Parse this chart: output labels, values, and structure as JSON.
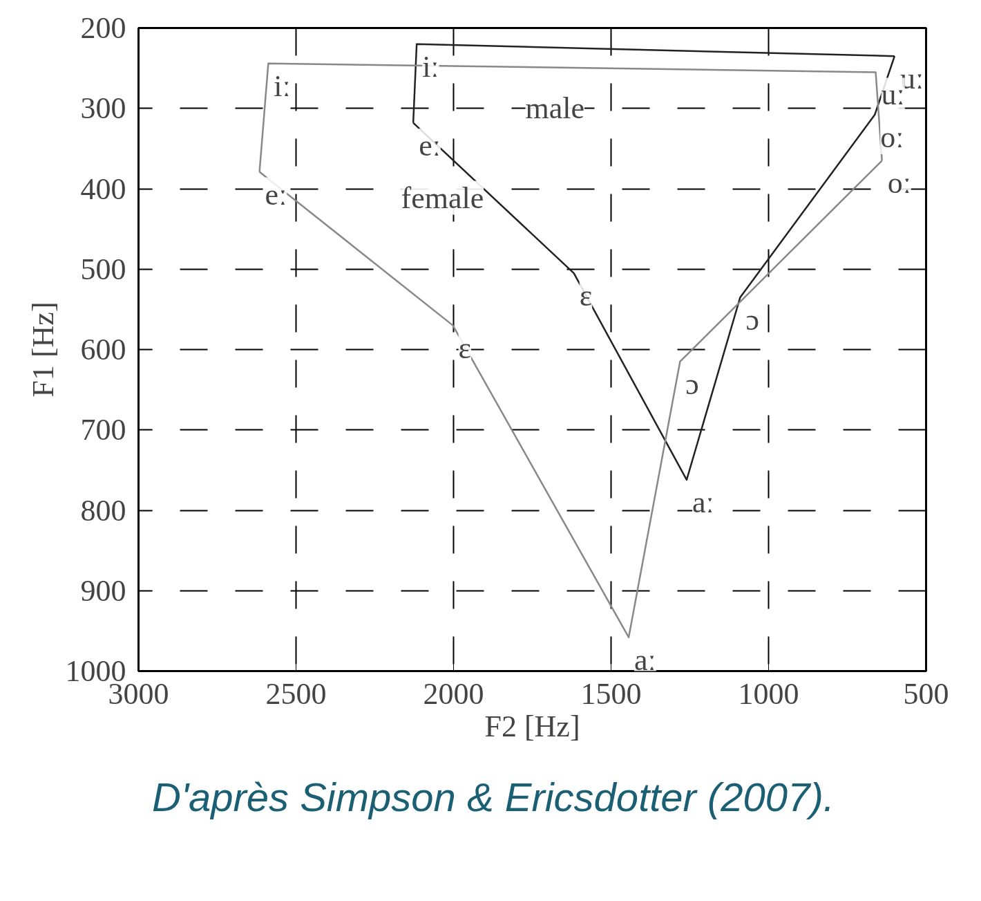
{
  "chart_data": {
    "type": "line",
    "xlabel": "F2 [Hz]",
    "ylabel": "F1 [Hz]",
    "xlim": [
      3000,
      500
    ],
    "ylim": [
      1000,
      200
    ],
    "xticks": [
      3000,
      2500,
      2000,
      1500,
      1000,
      500
    ],
    "yticks": [
      200,
      300,
      400,
      500,
      600,
      700,
      800,
      900,
      1000
    ],
    "grid": true,
    "line_style": "solid",
    "marker": "none",
    "series": [
      {
        "color": "#222222",
        "x": [
          2128,
          1618,
          1260,
          1090,
          663,
          600
        ],
        "values": [
          318,
          505,
          762,
          535,
          308,
          235
        ]
      },
      {
        "color": "#222222",
        "x": [
          2128,
          2117,
          600
        ],
        "values": [
          318,
          220,
          235
        ]
      },
      {
        "color": "#888888",
        "x": [
          2616,
          2002,
          1444,
          1281,
          640
        ],
        "values": [
          379,
          570,
          958,
          615,
          365
        ]
      },
      {
        "color": "#888888",
        "x": [
          2616,
          2588,
          660,
          640
        ],
        "values": [
          379,
          244,
          255,
          365
        ]
      }
    ],
    "annotations": [
      "male",
      "female",
      {
        "text": "iː",
        "x": 2117,
        "y": 220
      },
      {
        "text": "eː",
        "x": 2128,
        "y": 318
      },
      {
        "text": "ɛ",
        "x": 1618,
        "y": 505
      },
      {
        "text": "aː",
        "x": 1260,
        "y": 762
      },
      {
        "text": "ɔ",
        "x": 1090,
        "y": 535
      },
      {
        "text": "oː",
        "x": 663,
        "y": 308
      },
      {
        "text": "uː",
        "x": 600,
        "y": 235
      },
      {
        "text": "iː",
        "x": 2588,
        "y": 244
      },
      {
        "text": "eː",
        "x": 2616,
        "y": 379
      },
      {
        "text": "ɛ",
        "x": 2002,
        "y": 570
      },
      {
        "text": "aː",
        "x": 1444,
        "y": 958
      },
      {
        "text": "ɔ",
        "x": 1281,
        "y": 615
      },
      {
        "text": "oː",
        "x": 640,
        "y": 365
      },
      {
        "text": "uː",
        "x": 660,
        "y": 255
      },
      "D'après Simpson & Ericsdotter (2007)."
    ]
  }
}
